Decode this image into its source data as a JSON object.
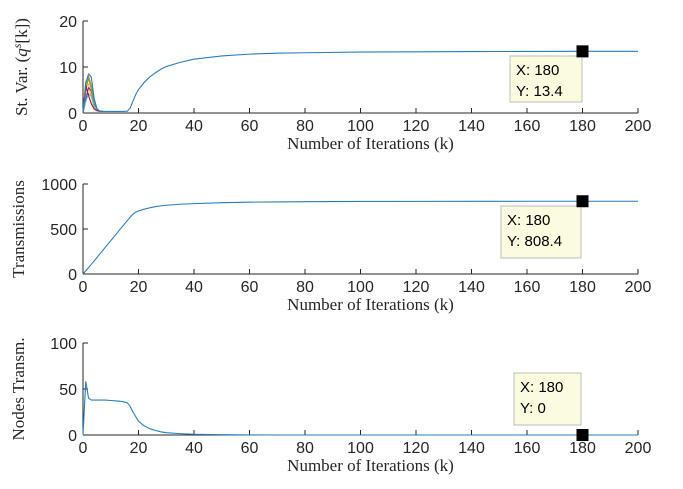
{
  "chart_data": [
    {
      "type": "line",
      "title": "",
      "xlabel": "Number of Iterations (k)",
      "ylabel": "St.  Var.  (q^s[k])",
      "ylabel_parts": {
        "text": "St.  Var.  (",
        "var": "q",
        "sup": "s",
        "rest": "[k])"
      },
      "xlim": [
        0,
        200
      ],
      "ylim": [
        0,
        20
      ],
      "xticks": [
        "0",
        "20",
        "40",
        "60",
        "80",
        "100",
        "120",
        "140",
        "160",
        "180",
        "200"
      ],
      "yticks": [
        "0",
        "10",
        "20"
      ],
      "series": [
        {
          "x": [
            0,
            1,
            2,
            3,
            4,
            5,
            6,
            8,
            10,
            12,
            14,
            16,
            17,
            18,
            19,
            20,
            22,
            24,
            26,
            28,
            30,
            35,
            40,
            50,
            60,
            70,
            80,
            100,
            120,
            140,
            160,
            180,
            200
          ],
          "values": [
            0,
            6.5,
            8.5,
            7.8,
            3.2,
            1.0,
            0.4,
            0.35,
            0.35,
            0.35,
            0.35,
            0.4,
            1.1,
            2.6,
            4.0,
            5.1,
            6.6,
            7.8,
            8.7,
            9.5,
            10.1,
            11.0,
            11.7,
            12.4,
            12.8,
            13.0,
            13.1,
            13.25,
            13.3,
            13.35,
            13.38,
            13.4,
            13.4
          ],
          "color": "#2a7cbd"
        },
        {
          "x": [
            0,
            1,
            2,
            3,
            4,
            5,
            6,
            7
          ],
          "values": [
            0,
            4.5,
            8.0,
            6.0,
            2.5,
            0.8,
            0.4,
            0.35
          ],
          "color": "#e07a3b"
        },
        {
          "x": [
            0,
            1,
            2,
            3,
            4,
            5,
            6,
            7
          ],
          "values": [
            0,
            7.0,
            6.2,
            3.5,
            1.2,
            0.5,
            0.4,
            0.35
          ],
          "color": "#edb120"
        },
        {
          "x": [
            0,
            1,
            2,
            3,
            4,
            5,
            6,
            7
          ],
          "values": [
            0,
            3.0,
            5.5,
            4.8,
            2.0,
            0.7,
            0.4,
            0.35
          ],
          "color": "#7e2f8e"
        },
        {
          "x": [
            0,
            1,
            2,
            3,
            4,
            5,
            6,
            7
          ],
          "values": [
            0,
            5.5,
            7.5,
            5.2,
            1.8,
            0.6,
            0.4,
            0.35
          ],
          "color": "#77ac30"
        },
        {
          "x": [
            0,
            1,
            2,
            3,
            4,
            5,
            6,
            7
          ],
          "values": [
            0,
            2.5,
            4.2,
            3.6,
            1.5,
            0.6,
            0.4,
            0.35
          ],
          "color": "#4dbeee"
        },
        {
          "x": [
            0,
            1,
            2,
            3,
            4,
            5,
            6,
            7
          ],
          "values": [
            0,
            6.0,
            3.8,
            2.0,
            0.9,
            0.5,
            0.4,
            0.35
          ],
          "color": "#a2142f"
        }
      ],
      "datatip": {
        "x": 180,
        "y": 13.4,
        "x_text": "X: 180",
        "y_text": "Y: 13.4"
      }
    },
    {
      "type": "line",
      "title": "",
      "xlabel": "Number of Iterations (k)",
      "ylabel": "Transmissions",
      "xlim": [
        0,
        200
      ],
      "ylim": [
        0,
        1000
      ],
      "xticks": [
        "0",
        "20",
        "40",
        "60",
        "80",
        "100",
        "120",
        "140",
        "160",
        "180",
        "200"
      ],
      "yticks": [
        "0",
        "500",
        "1000"
      ],
      "series": [
        {
          "x": [
            0,
            2,
            4,
            6,
            8,
            10,
            12,
            14,
            16,
            17,
            18,
            19,
            20,
            22,
            24,
            26,
            28,
            30,
            35,
            40,
            50,
            60,
            70,
            80,
            100,
            120,
            140,
            160,
            180,
            200
          ],
          "values": [
            0,
            70,
            145,
            220,
            295,
            370,
            445,
            520,
            595,
            632,
            665,
            688,
            700,
            720,
            735,
            748,
            757,
            764,
            775,
            782,
            792,
            798,
            801,
            803,
            806,
            807,
            808,
            808.2,
            808.4,
            808.4
          ],
          "color": "#2a7cbd"
        }
      ],
      "datatip": {
        "x": 180,
        "y": 808.4,
        "x_text": "X: 180",
        "y_text": "Y: 808.4"
      }
    },
    {
      "type": "line",
      "title": "",
      "xlabel": "Number of Iterations (k)",
      "ylabel": "Nodes Transm.",
      "xlim": [
        0,
        200
      ],
      "ylim": [
        0,
        100
      ],
      "xticks": [
        "0",
        "20",
        "40",
        "60",
        "80",
        "100",
        "120",
        "140",
        "160",
        "180",
        "200"
      ],
      "yticks": [
        "0",
        "50",
        "100"
      ],
      "series": [
        {
          "x": [
            0,
            1,
            2,
            3,
            5,
            8,
            10,
            12,
            14,
            16,
            17,
            18,
            19,
            20,
            22,
            24,
            26,
            28,
            30,
            35,
            40,
            50,
            60,
            70,
            80,
            100,
            120,
            140,
            160,
            180,
            200
          ],
          "values": [
            0,
            58,
            40,
            38,
            38,
            38,
            37.5,
            37,
            36.5,
            35,
            31,
            25,
            20,
            15,
            10,
            7,
            5,
            3.5,
            2.5,
            1.5,
            0.8,
            0.3,
            0.1,
            0,
            0,
            0,
            0,
            0,
            0,
            0,
            0
          ],
          "color": "#2a7cbd"
        }
      ],
      "datatip": {
        "x": 180,
        "y": 0,
        "x_text": "X: 180",
        "y_text": "Y: 0"
      }
    }
  ]
}
